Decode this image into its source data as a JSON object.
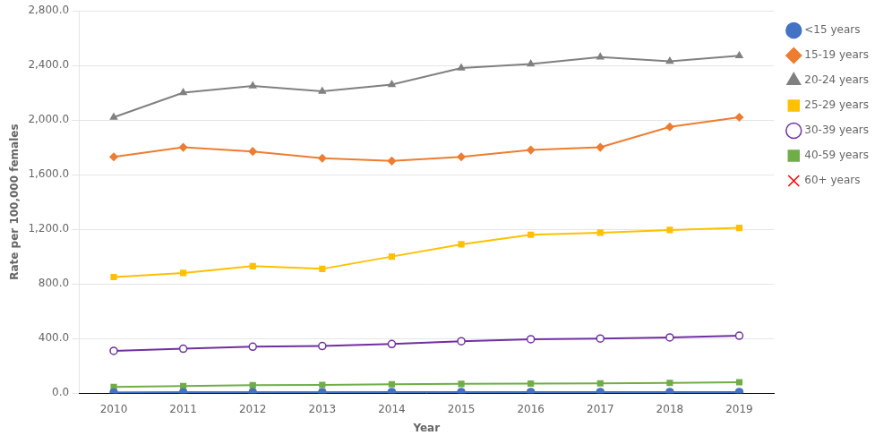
{
  "chart_data": {
    "type": "line",
    "x_label": "Year",
    "y_label": "Rate per 100,000 females",
    "x": [
      2010,
      2011,
      2012,
      2013,
      2014,
      2015,
      2016,
      2017,
      2018,
      2019
    ],
    "xlim": [
      2009.5,
      2019.5
    ],
    "xticks": [
      2010,
      2011,
      2012,
      2013,
      2014,
      2015,
      2016,
      2017,
      2018,
      2019
    ],
    "ylim": [
      0,
      2800
    ],
    "yticks": [
      {
        "value": 0,
        "label": "0.0"
      },
      {
        "value": 400,
        "label": "400.0"
      },
      {
        "value": 800,
        "label": "800.0"
      },
      {
        "value": 1200,
        "label": "1,200.0"
      },
      {
        "value": 1600,
        "label": "1,600.0"
      },
      {
        "value": 2000,
        "label": "2,000.0"
      },
      {
        "value": 2400,
        "label": "2,400.0"
      },
      {
        "value": 2800,
        "label": "2,800.0"
      }
    ],
    "grid": "y",
    "legend": "right",
    "series": [
      {
        "name": "<15 years",
        "color": "#4472C4",
        "marker": "circle",
        "values": [
          5,
          6,
          7,
          7,
          8,
          8,
          8,
          8,
          8,
          8
        ]
      },
      {
        "name": "15-19 years",
        "color": "#ED7D31",
        "marker": "diamond",
        "values": [
          1730,
          1800,
          1770,
          1720,
          1700,
          1730,
          1780,
          1800,
          1950,
          2020
        ]
      },
      {
        "name": "20-24 years",
        "color": "#808080",
        "marker": "triangle",
        "values": [
          2020,
          2200,
          2250,
          2210,
          2260,
          2380,
          2410,
          2460,
          2430,
          2470
        ]
      },
      {
        "name": "25-29 years",
        "color": "#FFC000",
        "marker": "square",
        "values": [
          850,
          880,
          930,
          910,
          1000,
          1090,
          1160,
          1175,
          1195,
          1210
        ]
      },
      {
        "name": "30-39 years",
        "color": "#7030A0",
        "marker": "open_circle",
        "values": [
          310,
          325,
          340,
          345,
          360,
          380,
          395,
          400,
          408,
          420
        ]
      },
      {
        "name": "40-59 years",
        "color": "#70AD47",
        "marker": "square",
        "values": [
          45,
          52,
          58,
          60,
          65,
          68,
          70,
          72,
          75,
          80
        ]
      },
      {
        "name": "60+ years",
        "color": "#FF0000",
        "marker": "x",
        "values": [
          3,
          4,
          4,
          5,
          5,
          5,
          5,
          5,
          5,
          5
        ]
      }
    ]
  }
}
